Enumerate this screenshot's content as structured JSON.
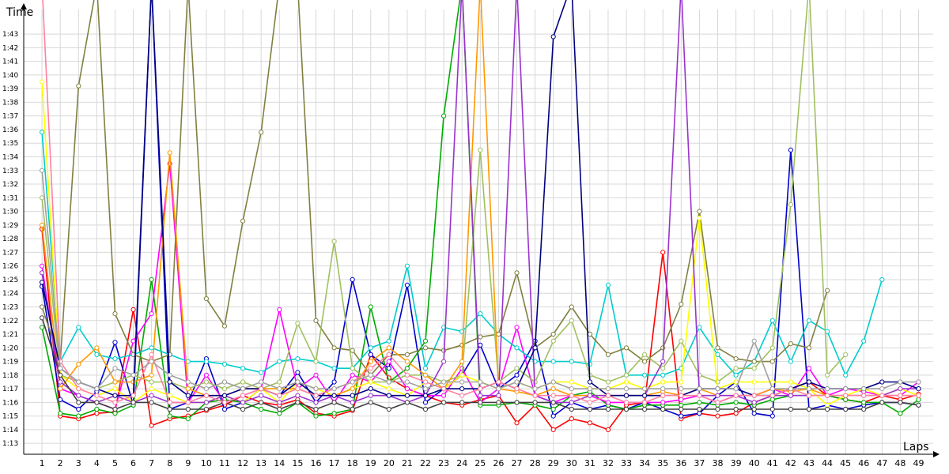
{
  "chart_data": {
    "type": "line",
    "xlabel": "Laps",
    "ylabel": "Time",
    "x": [
      1,
      2,
      3,
      4,
      5,
      6,
      7,
      8,
      9,
      10,
      11,
      12,
      13,
      14,
      15,
      16,
      17,
      18,
      19,
      20,
      21,
      22,
      23,
      24,
      25,
      26,
      27,
      28,
      29,
      30,
      31,
      32,
      33,
      34,
      35,
      36,
      37,
      38,
      39,
      40,
      41,
      42,
      43,
      44,
      45,
      46,
      47,
      48,
      49
    ],
    "x_tick_labels": [
      "1",
      "2",
      "3",
      "4",
      "5",
      "6",
      "7",
      "8",
      "9",
      "10",
      "11",
      "12",
      "13",
      "14",
      "15",
      "16",
      "17",
      "18",
      "19",
      "20",
      "21",
      "22",
      "23",
      "24",
      "25",
      "26",
      "27",
      "28",
      "29",
      "30",
      "31",
      "32",
      "33",
      "34",
      "35",
      "36",
      "37",
      "38",
      "39",
      "40",
      "41",
      "42",
      "43",
      "44",
      "45",
      "46",
      "47",
      "48",
      "49"
    ],
    "y_tick_seconds": [
      73,
      74,
      75,
      76,
      77,
      78,
      79,
      80,
      81,
      82,
      83,
      84,
      85,
      86,
      87,
      88,
      89,
      90,
      91,
      92,
      93,
      94,
      95,
      96,
      97,
      98,
      99,
      100,
      101,
      102,
      103
    ],
    "y_tick_labels": [
      "1:13",
      "1:14",
      "1:15",
      "1:16",
      "1:17",
      "1:18",
      "1:19",
      "1:20",
      "1:21",
      "1:22",
      "1:23",
      "1:24",
      "1:25",
      "1:26",
      "1:27",
      "1:28",
      "1:29",
      "1:30",
      "1:31",
      "1:32",
      "1:33",
      "1:34",
      "1:35",
      "1:36",
      "1:37",
      "1:38",
      "1:39",
      "1:40",
      "1:41",
      "1:42",
      "1:43"
    ],
    "ylim_seconds": [
      72.2,
      104.8
    ],
    "xlim": [
      0,
      49.8
    ],
    "grid": true,
    "legend": "none",
    "series": [
      {
        "color": "#ff0000",
        "values": [
          88.7,
          75.0,
          74.8,
          75.2,
          75.3,
          82.8,
          74.3,
          74.8,
          75.0,
          75.4,
          75.8,
          76.5,
          76.0,
          75.8,
          76.2,
          75.2,
          75.0,
          75.4,
          79.5,
          77.8,
          77.0,
          76.5,
          76.0,
          75.8,
          76.2,
          76.5,
          74.5,
          75.8,
          74.0,
          74.8,
          74.5,
          74.0,
          75.8,
          76.0,
          87.0,
          74.8,
          75.2,
          75.0,
          75.2,
          76.0,
          76.5,
          77.0,
          77.5,
          76.5,
          76.2,
          76.0,
          76.5,
          76.2,
          76.6
        ]
      },
      {
        "color": "#0000cc",
        "values": [
          84.5,
          76.2,
          75.5,
          76.8,
          80.4,
          75.8,
          120,
          75.5,
          76.0,
          79.2,
          75.5,
          76.0,
          77.0,
          76.5,
          78.2,
          76.0,
          77.5,
          85.0,
          79.5,
          78.5,
          84.6,
          76.0,
          77.0,
          78.0,
          80.2,
          77.0,
          78.0,
          80.5,
          75.0,
          76.0,
          75.5,
          75.8,
          75.5,
          76.0,
          75.5,
          75.0,
          75.2,
          76.5,
          77.5,
          75.2,
          75.0,
          94.5,
          75.5,
          75.8,
          75.5,
          75.8,
          76.0,
          76.0,
          75.8
        ]
      },
      {
        "color": "#00aa00",
        "values": [
          81.5,
          75.2,
          75.0,
          75.5,
          75.2,
          75.8,
          85.0,
          75.0,
          74.8,
          76.0,
          76.2,
          76.0,
          75.5,
          75.2,
          76.0,
          75.0,
          75.2,
          75.5,
          83.0,
          77.5,
          78.5,
          80.5,
          97.0,
          120,
          75.8,
          75.8,
          76.0,
          75.8,
          75.5,
          76.5,
          76.8,
          75.8,
          75.5,
          75.8,
          75.8,
          75.8,
          76.0,
          75.8,
          76.0,
          75.8,
          76.2,
          76.5,
          76.5,
          76.5,
          76.2,
          76.0,
          76.0,
          75.2,
          76.2
        ]
      },
      {
        "color": "#ff00ff",
        "values": [
          86.0,
          77.0,
          76.5,
          76.0,
          75.5,
          80.5,
          82.5,
          93.5,
          76.0,
          78.0,
          76.0,
          76.5,
          77.0,
          82.8,
          77.0,
          78.0,
          76.0,
          78.0,
          77.5,
          79.0,
          77.0,
          76.5,
          76.5,
          78.5,
          76.0,
          77.0,
          81.5,
          76.5,
          76.0,
          76.5,
          76.5,
          76.0,
          76.0,
          76.0,
          76.0,
          76.2,
          76.5,
          76.0,
          76.5,
          76.5,
          77.0,
          76.5,
          78.5,
          76.5,
          77.0,
          76.8,
          76.5,
          76.5,
          77.5
        ]
      },
      {
        "color": "#00cccc",
        "values": [
          95.8,
          79.0,
          81.5,
          79.5,
          79.2,
          79.5,
          80.0,
          79.5,
          79.0,
          79.0,
          78.8,
          78.5,
          78.2,
          79.0,
          79.2,
          79.0,
          78.5,
          78.5,
          80.0,
          80.5,
          86.0,
          78.5,
          81.5,
          81.2,
          82.5,
          81.0,
          80.0,
          79.0,
          79.0,
          79.0,
          78.8,
          84.6,
          78.0,
          78.0,
          78.0,
          78.5,
          81.5,
          79.5,
          78.0,
          79.0,
          82.0,
          79.0,
          82.0,
          81.2,
          78.0,
          80.5,
          85.0,
          null,
          null
        ]
      },
      {
        "color": "#808040",
        "values": [
          83.0,
          79.0,
          99.2,
          120,
          82.5,
          79.5,
          79.0,
          79.5,
          120,
          83.6,
          81.6,
          89.3,
          95.8,
          120,
          120,
          82.0,
          80.0,
          79.8,
          78.0,
          79.5,
          79.5,
          80.0,
          79.8,
          80.2,
          80.8,
          81.0,
          85.5,
          80.0,
          81.0,
          83.0,
          81.0,
          79.5,
          80.0,
          79.0,
          80.0,
          83.2,
          90.0,
          80.0,
          79.2,
          79.0,
          79.0,
          80.3,
          80.0,
          84.2,
          null,
          null,
          null,
          null,
          null
        ]
      },
      {
        "color": "#a0c060",
        "values": [
          91.0,
          78.0,
          77.5,
          77.0,
          77.5,
          78.0,
          77.5,
          77.5,
          77.0,
          77.5,
          77.0,
          77.5,
          77.0,
          77.5,
          81.8,
          79.0,
          87.8,
          78.5,
          77.5,
          77.5,
          78.0,
          78.0,
          77.5,
          78.0,
          94.5,
          77.5,
          78.5,
          77.5,
          80.5,
          82.0,
          78.0,
          77.5,
          78.0,
          79.5,
          78.5,
          80.5,
          78.0,
          77.5,
          78.5,
          78.5,
          80.0,
          90.5,
          120,
          78.0,
          79.5,
          null,
          null,
          null,
          null
        ]
      },
      {
        "color": "#ffff00",
        "values": [
          99.5,
          78.0,
          77.0,
          76.5,
          77.0,
          76.0,
          77.0,
          76.5,
          76.0,
          76.0,
          76.5,
          76.0,
          77.0,
          76.0,
          77.5,
          77.0,
          76.5,
          77.0,
          77.5,
          77.0,
          76.5,
          77.5,
          77.0,
          78.0,
          77.5,
          77.0,
          77.5,
          77.0,
          77.5,
          77.5,
          77.0,
          77.0,
          77.5,
          77.0,
          77.5,
          77.5,
          89.5,
          77.0,
          77.5,
          77.5,
          77.5,
          77.5,
          77.0,
          75.8,
          76.5,
          77.0,
          76.5,
          77.0,
          76.5
        ]
      },
      {
        "color": "#ff9900",
        "values": [
          89.0,
          77.0,
          78.8,
          80.0,
          77.5,
          77.5,
          78.0,
          94.3,
          77.0,
          76.5,
          76.5,
          77.0,
          77.0,
          77.0,
          77.0,
          76.5,
          76.5,
          77.0,
          79.0,
          80.0,
          79.0,
          78.0,
          77.0,
          79.0,
          120,
          77.0,
          76.8,
          76.5,
          77.0,
          76.5,
          76.5,
          76.5,
          76.5,
          76.5,
          76.8,
          76.5,
          77.0,
          76.5,
          76.5,
          76.5,
          77.0,
          76.8,
          77.0,
          76.5,
          76.5,
          76.5,
          76.5,
          76.5,
          76.5
        ]
      },
      {
        "color": "#9933cc",
        "values": [
          85.5,
          77.5,
          76.5,
          76.0,
          76.5,
          76.0,
          76.5,
          76.0,
          76.0,
          76.0,
          76.5,
          76.0,
          76.5,
          76.0,
          76.5,
          76.0,
          76.5,
          76.0,
          76.5,
          76.5,
          76.0,
          76.5,
          79.0,
          120,
          76.5,
          76.5,
          120,
          76.5,
          76.0,
          76.0,
          76.5,
          76.5,
          76.5,
          76.5,
          79.0,
          120,
          76.5,
          76.5,
          76.5,
          76.0,
          76.5,
          76.5,
          76.5,
          76.5,
          76.5,
          76.5,
          76.5,
          77.0,
          77.0
        ]
      },
      {
        "color": "#000080",
        "values": [
          84.8,
          78.5,
          77.5,
          77.0,
          76.5,
          76.5,
          120,
          77.5,
          76.5,
          76.5,
          76.5,
          77.0,
          77.0,
          76.5,
          77.5,
          76.5,
          76.5,
          76.5,
          77.0,
          76.5,
          76.5,
          76.5,
          77.0,
          77.0,
          77.0,
          77.5,
          77.0,
          80.0,
          102.8,
          120,
          77.5,
          76.5,
          76.5,
          76.5,
          76.5,
          76.5,
          77.0,
          77.0,
          77.0,
          76.5,
          76.5,
          77.0,
          77.5,
          77.0,
          77.0,
          77.0,
          77.5,
          77.5,
          77.0
        ]
      },
      {
        "color": "#404040",
        "values": [
          82.2,
          78.0,
          76.0,
          76.0,
          75.5,
          76.0,
          76.0,
          75.5,
          75.5,
          75.5,
          76.0,
          75.5,
          76.0,
          75.5,
          76.0,
          75.5,
          76.0,
          75.5,
          76.0,
          75.5,
          76.0,
          75.5,
          76.0,
          76.0,
          76.0,
          76.0,
          76.0,
          76.0,
          76.0,
          75.5,
          75.5,
          75.5,
          75.5,
          75.5,
          75.5,
          75.5,
          75.5,
          75.5,
          75.5,
          75.5,
          75.5,
          75.5,
          75.5,
          75.5,
          75.5,
          75.5,
          76.0,
          76.0,
          75.8
        ]
      },
      {
        "color": "#ff80a0",
        "values": [
          120,
          79.0,
          77.0,
          76.5,
          76.0,
          76.5,
          79.5,
          76.0,
          76.0,
          76.5,
          76.0,
          76.5,
          77.0,
          76.5,
          77.0,
          76.5,
          77.0,
          77.5,
          78.5,
          79.5,
          78.0,
          77.5,
          77.0,
          76.5,
          77.0,
          77.5,
          77.0,
          76.5,
          76.5,
          76.5,
          76.0,
          76.5,
          76.0,
          76.0,
          76.5,
          76.5,
          76.5,
          76.0,
          76.5,
          76.5,
          76.5,
          77.0,
          76.5,
          76.5,
          76.5,
          76.5,
          76.5,
          76.5,
          76.5
        ]
      },
      {
        "color": "#a0a0a0",
        "values": [
          93.0,
          78.5,
          77.5,
          77.0,
          78.5,
          78.0,
          79.0,
          78.0,
          77.5,
          77.0,
          77.5,
          77.0,
          77.5,
          77.0,
          77.5,
          77.0,
          77.0,
          77.5,
          78.0,
          77.5,
          77.5,
          77.0,
          77.5,
          77.5,
          77.5,
          77.0,
          77.5,
          77.0,
          77.5,
          77.0,
          77.0,
          77.0,
          77.0,
          77.0,
          77.0,
          77.0,
          77.0,
          77.0,
          77.0,
          80.5,
          77.0,
          77.0,
          77.0,
          77.0,
          77.0,
          77.0,
          77.0,
          77.5,
          77.5
        ]
      }
    ]
  }
}
